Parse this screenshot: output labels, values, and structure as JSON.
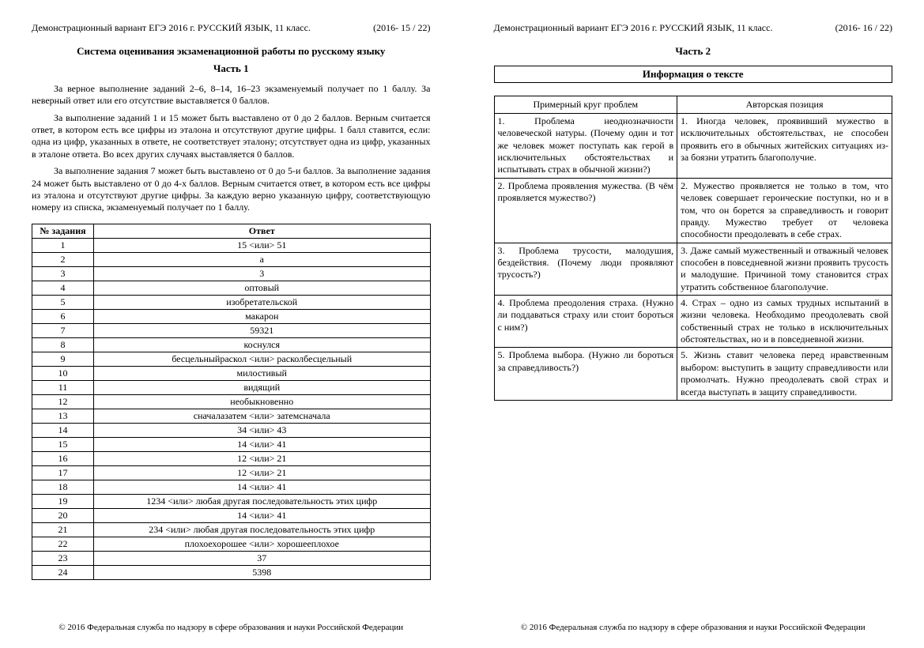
{
  "left": {
    "header_left": "Демонстрационный вариант ЕГЭ 2016 г.   РУССКИЙ ЯЗЫК,  11  класс.",
    "header_right": "(2016-  15 / 22)",
    "title": "Система оценивания экзаменационной работы по русскому языку",
    "part": "Часть 1",
    "p1": "За верное выполнение заданий 2–6, 8–14, 16–23 экзаменуемый получает по 1 баллу. За неверный ответ или его отсутствие выставляется 0 баллов.",
    "p2": "За выполнение заданий 1 и 15 может быть выставлено от 0 до 2 баллов. Верным считается ответ, в котором есть все цифры из эталона и отсутствуют другие цифры. 1 балл ставится, если: одна из цифр, указанных в ответе, не соответствует эталону; отсутствует одна из цифр, указанных в эталоне ответа. Во всех других случаях выставляется 0 баллов.",
    "p3": "За выполнение задания 7 может быть выставлено от 0 до 5-и баллов. За выполнение задания 24 может быть выставлено от 0 до 4-х баллов. Верным считается ответ, в котором есть все цифры из эталона и отсутствуют другие цифры. За каждую верно указанную цифру, соответствующую номеру из списка, экзаменуемый получает по 1 баллу.",
    "table_h1": "№ задания",
    "table_h2": "Ответ",
    "rows": [
      {
        "n": "1",
        "a": "15 <или> 51"
      },
      {
        "n": "2",
        "a": "а"
      },
      {
        "n": "3",
        "a": "3"
      },
      {
        "n": "4",
        "a": "оптовый"
      },
      {
        "n": "5",
        "a": "изобретательской"
      },
      {
        "n": "6",
        "a": "макарон"
      },
      {
        "n": "7",
        "a": "59321"
      },
      {
        "n": "8",
        "a": "коснулся"
      },
      {
        "n": "9",
        "a": "бесцельныйраскол <или> расколбесцельный"
      },
      {
        "n": "10",
        "a": "милостивый"
      },
      {
        "n": "11",
        "a": "видящий"
      },
      {
        "n": "12",
        "a": "необыкновенно"
      },
      {
        "n": "13",
        "a": "сначалазатем <или> затемсначала"
      },
      {
        "n": "14",
        "a": "34 <или> 43"
      },
      {
        "n": "15",
        "a": "14 <или> 41"
      },
      {
        "n": "16",
        "a": "12 <или> 21"
      },
      {
        "n": "17",
        "a": "12 <или> 21"
      },
      {
        "n": "18",
        "a": "14 <или> 41"
      },
      {
        "n": "19",
        "a": "1234 <или> любая другая последовательность этих цифр"
      },
      {
        "n": "20",
        "a": "14 <или> 41"
      },
      {
        "n": "21",
        "a": "234 <или> любая другая последовательность этих цифр"
      },
      {
        "n": "22",
        "a": "плохоехорошее <или> хорошееплохое"
      },
      {
        "n": "23",
        "a": "37"
      },
      {
        "n": "24",
        "a": "5398"
      }
    ],
    "footer": "© 2016 Федеральная служба по надзору в сфере образования и науки Российской Федерации"
  },
  "right": {
    "header_left": "Демонстрационный вариант ЕГЭ 2016 г.   РУССКИЙ ЯЗЫК,  11  класс.",
    "header_right": "(2016-  16 / 22)",
    "part": "Часть 2",
    "info_title": "Информация о тексте",
    "th1": "Примерный круг проблем",
    "th2": "Авторская позиция",
    "rows": [
      {
        "p": "1. Проблема неоднозначности человеческой натуры. (Почему один и тот же человек может поступать как герой в исключительных обстоятельствах и испытывать страх в обычной жизни?)",
        "a": "1. Иногда человек, проявивший мужество в исключительных обстоятельствах, не способен проявить его в обычных житейских ситуациях из-за боязни утратить благополучие."
      },
      {
        "p": "2. Проблема проявления мужества. (В чём проявляется мужество?)",
        "a": "2. Мужество проявляется не только в том, что человек совершает героические поступки, но и в том, что он борется за справедливость и говорит правду. Мужество требует от человека способности преодолевать в себе страх."
      },
      {
        "p": "3. Проблема трусости, малодушия, бездействия. (Почему люди проявляют трусость?)",
        "a": "3. Даже самый мужественный и отважный человек способен в повседневной жизни проявить трусость и малодушие. Причиной тому становится страх утратить собственное благополучие."
      },
      {
        "p": "4. Проблема преодоления страха. (Нужно ли поддаваться страху или стоит бороться с ним?)",
        "a": "4. Страх – одно из самых трудных испытаний в жизни человека. Необходимо преодолевать свой собственный страх не только в исключительных обстоятельствах, но и в повседневной жизни."
      },
      {
        "p": "5. Проблема выбора. (Нужно ли бороться за справедливость?)",
        "a": "5. Жизнь ставит человека перед нравственным выбором: выступить в защиту справедливости или промолчать. Нужно преодолевать свой страх и всегда выступать в защиту справедливости."
      }
    ],
    "footer": "© 2016 Федеральная служба по надзору в сфере образования и науки Российской Федерации"
  }
}
